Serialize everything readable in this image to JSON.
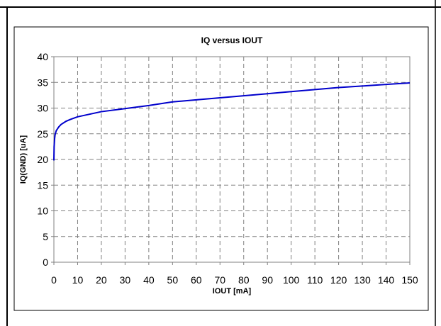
{
  "chart_data": {
    "type": "line",
    "title": "IQ versus IOUT",
    "xlabel": "IOUT [mA]",
    "ylabel": "IQ(GND) [uA]",
    "xlim": [
      0,
      150
    ],
    "ylim": [
      0,
      40
    ],
    "xticks": [
      "0",
      "10",
      "20",
      "30",
      "40",
      "50",
      "60",
      "70",
      "80",
      "90",
      "100",
      "110",
      "120",
      "130",
      "140",
      "150"
    ],
    "yticks": [
      "0",
      "5",
      "10",
      "15",
      "20",
      "25",
      "30",
      "35",
      "40"
    ],
    "grid": true,
    "line_color": "#0000cc",
    "series": [
      {
        "x": [
          0,
          0.1,
          0.3,
          0.5,
          1,
          2,
          3,
          5,
          7,
          10,
          15,
          20,
          30,
          40,
          50,
          60,
          70,
          80,
          90,
          100,
          110,
          120,
          130,
          140,
          150
        ],
        "y": [
          19.8,
          22.5,
          24.0,
          24.8,
          25.6,
          26.3,
          26.8,
          27.4,
          27.8,
          28.3,
          28.8,
          29.3,
          29.9,
          30.5,
          31.2,
          31.6,
          32.0,
          32.4,
          32.8,
          33.2,
          33.6,
          34.0,
          34.3,
          34.6,
          34.9
        ]
      }
    ]
  }
}
